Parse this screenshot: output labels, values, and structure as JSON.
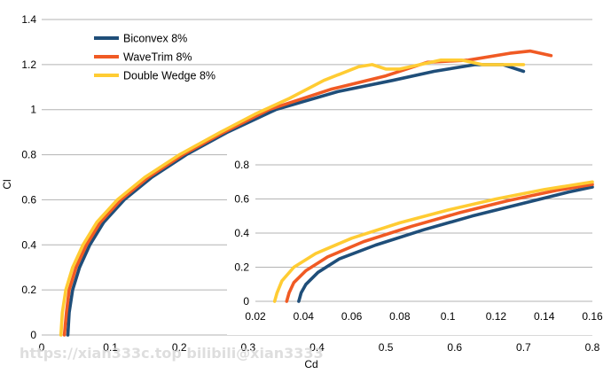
{
  "watermark": "https://xian333c.top bilibili@xian3333",
  "chart_data": [
    {
      "type": "line",
      "xlabel": "Cd",
      "ylabel": "Cl",
      "xlim": [
        0,
        0.8
      ],
      "ylim": [
        0,
        1.4
      ],
      "xticks": [
        0,
        0.1,
        0.2,
        0.3,
        0.4,
        0.5,
        0.6,
        0.7,
        0.8
      ],
      "yticks": [
        0,
        0.2,
        0.4,
        0.6,
        0.8,
        1,
        1.2,
        1.4
      ],
      "grid": "horizontal",
      "legend_position": "top-left",
      "series": [
        {
          "name": "Biconvex 8%",
          "color": "#1f4e79",
          "points": [
            [
              0.038,
              0
            ],
            [
              0.04,
              0.1
            ],
            [
              0.045,
              0.2
            ],
            [
              0.055,
              0.3
            ],
            [
              0.07,
              0.4
            ],
            [
              0.09,
              0.5
            ],
            [
              0.12,
              0.6
            ],
            [
              0.16,
              0.7
            ],
            [
              0.21,
              0.8
            ],
            [
              0.27,
              0.9
            ],
            [
              0.34,
              1.0
            ],
            [
              0.43,
              1.08
            ],
            [
              0.51,
              1.13
            ],
            [
              0.57,
              1.17
            ],
            [
              0.63,
              1.2
            ],
            [
              0.67,
              1.2
            ],
            [
              0.7,
              1.17
            ]
          ]
        },
        {
          "name": "WaveTrim 8%",
          "color": "#f05a24",
          "points": [
            [
              0.033,
              0
            ],
            [
              0.036,
              0.1
            ],
            [
              0.04,
              0.2
            ],
            [
              0.05,
              0.3
            ],
            [
              0.065,
              0.4
            ],
            [
              0.085,
              0.5
            ],
            [
              0.115,
              0.6
            ],
            [
              0.155,
              0.7
            ],
            [
              0.205,
              0.8
            ],
            [
              0.265,
              0.9
            ],
            [
              0.33,
              1.0
            ],
            [
              0.42,
              1.09
            ],
            [
              0.5,
              1.15
            ],
            [
              0.56,
              1.21
            ],
            [
              0.62,
              1.22
            ],
            [
              0.68,
              1.25
            ],
            [
              0.71,
              1.26
            ],
            [
              0.74,
              1.24
            ]
          ]
        },
        {
          "name": "Double Wedge 8%",
          "color": "#ffcc33",
          "points": [
            [
              0.028,
              0
            ],
            [
              0.03,
              0.1
            ],
            [
              0.035,
              0.2
            ],
            [
              0.045,
              0.3
            ],
            [
              0.06,
              0.4
            ],
            [
              0.08,
              0.5
            ],
            [
              0.11,
              0.6
            ],
            [
              0.15,
              0.7
            ],
            [
              0.2,
              0.8
            ],
            [
              0.26,
              0.9
            ],
            [
              0.31,
              0.98
            ],
            [
              0.36,
              1.05
            ],
            [
              0.41,
              1.13
            ],
            [
              0.46,
              1.19
            ],
            [
              0.48,
              1.2
            ],
            [
              0.5,
              1.18
            ],
            [
              0.52,
              1.18
            ],
            [
              0.55,
              1.2
            ],
            [
              0.58,
              1.22
            ],
            [
              0.61,
              1.22
            ],
            [
              0.64,
              1.2
            ],
            [
              0.67,
              1.2
            ],
            [
              0.7,
              1.2
            ]
          ]
        }
      ]
    },
    {
      "type": "line",
      "inset": true,
      "xlim": [
        0.02,
        0.16
      ],
      "ylim": [
        0,
        0.8
      ],
      "xticks": [
        0.02,
        0.04,
        0.06,
        0.08,
        0.1,
        0.12,
        0.14,
        0.16
      ],
      "yticks": [
        0,
        0.2,
        0.4,
        0.6,
        0.8
      ],
      "grid": "horizontal",
      "series": [
        {
          "color": "#1f4e79",
          "points": [
            [
              0.038,
              0
            ],
            [
              0.039,
              0.05
            ],
            [
              0.041,
              0.1
            ],
            [
              0.046,
              0.17
            ],
            [
              0.055,
              0.25
            ],
            [
              0.07,
              0.33
            ],
            [
              0.09,
              0.42
            ],
            [
              0.11,
              0.5
            ],
            [
              0.13,
              0.57
            ],
            [
              0.15,
              0.64
            ],
            [
              0.16,
              0.67
            ]
          ]
        },
        {
          "color": "#f05a24",
          "points": [
            [
              0.033,
              0
            ],
            [
              0.034,
              0.05
            ],
            [
              0.036,
              0.11
            ],
            [
              0.041,
              0.18
            ],
            [
              0.05,
              0.26
            ],
            [
              0.065,
              0.35
            ],
            [
              0.085,
              0.44
            ],
            [
              0.105,
              0.52
            ],
            [
              0.125,
              0.59
            ],
            [
              0.145,
              0.65
            ],
            [
              0.16,
              0.685
            ]
          ]
        },
        {
          "color": "#ffcc33",
          "points": [
            [
              0.028,
              0
            ],
            [
              0.029,
              0.05
            ],
            [
              0.031,
              0.12
            ],
            [
              0.036,
              0.2
            ],
            [
              0.045,
              0.28
            ],
            [
              0.06,
              0.37
            ],
            [
              0.08,
              0.46
            ],
            [
              0.1,
              0.535
            ],
            [
              0.12,
              0.6
            ],
            [
              0.14,
              0.655
            ],
            [
              0.16,
              0.7
            ]
          ]
        }
      ]
    }
  ]
}
